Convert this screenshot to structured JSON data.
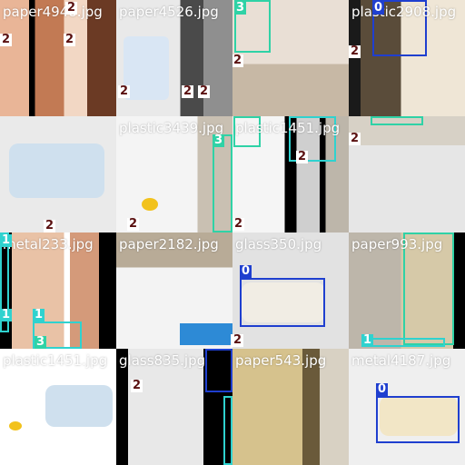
{
  "colors": {
    "class_0": "#1f3fcf",
    "class_1": "#2fd2cf",
    "class_2": "#ffffff",
    "class_3": "#2fd2a6"
  },
  "tiles": [
    {
      "id": "r0c0",
      "filename": "paper4948.jpg",
      "labels": [
        "2",
        "2",
        "2",
        "2"
      ]
    },
    {
      "id": "r0c1",
      "filename": "paper4526.jpg",
      "labels": [
        "2",
        "2",
        "2"
      ]
    },
    {
      "id": "r0c2",
      "filename": "",
      "labels": [
        "3",
        "2"
      ]
    },
    {
      "id": "r0c3",
      "filename": "plastic2908.jpg",
      "labels": [
        "0",
        "0",
        "2"
      ]
    },
    {
      "id": "r1c0",
      "filename": "",
      "labels": [
        "2"
      ]
    },
    {
      "id": "r1c1",
      "filename": "plastic3439.jpg",
      "labels": [
        "3",
        "2"
      ]
    },
    {
      "id": "r1c2",
      "filename": "plastic1451.jpg",
      "labels": [
        "3",
        "1",
        "2",
        "2"
      ]
    },
    {
      "id": "r1c3",
      "filename": "",
      "labels": [
        "3",
        "2"
      ]
    },
    {
      "id": "r2c0",
      "filename": "metal233.jpg",
      "labels": [
        "1",
        "1",
        "1",
        "3"
      ]
    },
    {
      "id": "r2c1",
      "filename": "paper2182.jpg",
      "labels": [
        "2"
      ]
    },
    {
      "id": "r2c2",
      "filename": "glass350.jpg",
      "labels": [
        "0",
        "2"
      ]
    },
    {
      "id": "r2c3",
      "filename": "paper993.jpg",
      "labels": [
        "3",
        "1"
      ]
    },
    {
      "id": "r3c0",
      "filename": "plastic1451.jpg",
      "labels": []
    },
    {
      "id": "r3c1",
      "filename": "glass835.jpg",
      "labels": [
        "2",
        "0",
        "1"
      ]
    },
    {
      "id": "r3c2",
      "filename": "paper543.jpg",
      "labels": []
    },
    {
      "id": "r3c3",
      "filename": "metal4187.jpg",
      "labels": [
        "0"
      ]
    }
  ]
}
